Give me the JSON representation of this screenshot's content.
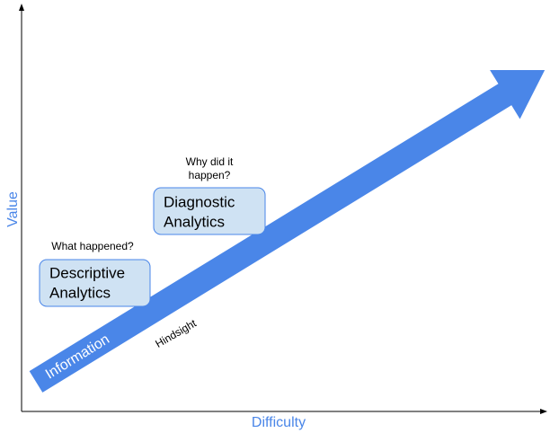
{
  "axes": {
    "y_label": "Value",
    "x_label": "Difficulty"
  },
  "arrow": {
    "label": "Information",
    "annotation": "Hindsight"
  },
  "boxes": [
    {
      "lines": [
        "Descriptive",
        "Analytics"
      ],
      "question": [
        "What happened?"
      ]
    },
    {
      "lines": [
        "Diagnostic",
        "Analytics"
      ],
      "question": [
        "Why did it",
        "happen?"
      ]
    }
  ]
}
